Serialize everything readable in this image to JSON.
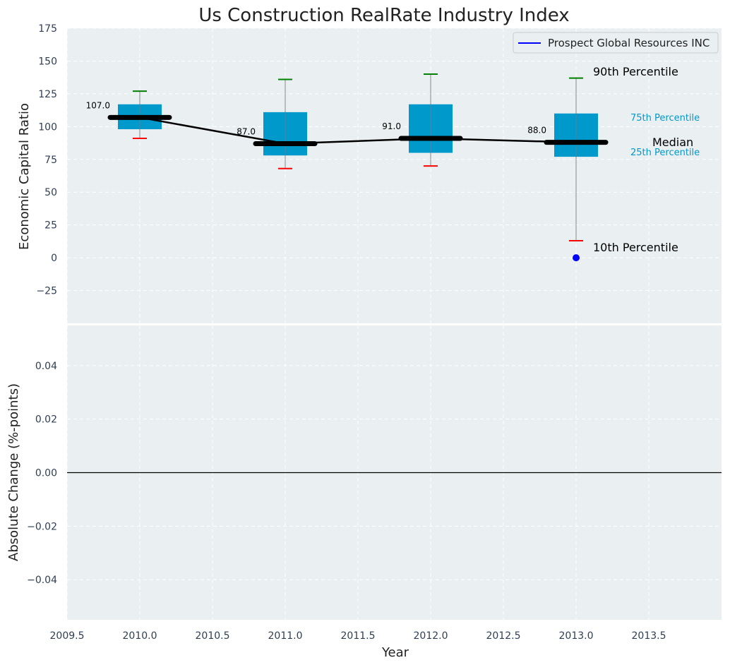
{
  "chart_data": [
    {
      "type": "box",
      "title": "Us Construction RealRate Industry Index",
      "xlabel": "",
      "ylabel": "Economic Capital Ratio",
      "ylim": [
        -50,
        175
      ],
      "xlim": [
        2009.5,
        2014.0
      ],
      "grid": true,
      "y_ticks": [
        "175",
        "150",
        "125",
        "100",
        "75",
        "50",
        "25",
        "0",
        "−25"
      ],
      "y_tick_values": [
        175,
        150,
        125,
        100,
        75,
        50,
        25,
        0,
        -25
      ],
      "legend": {
        "placement": "top-right",
        "entries": [
          {
            "label": "Prospect Global Resources INC",
            "color": "#0000ff"
          }
        ]
      },
      "boxes": [
        {
          "year": 2010,
          "p10": 91,
          "p25": 98,
          "median": 107,
          "p75": 117,
          "p90": 127,
          "median_label": "107.0"
        },
        {
          "year": 2011,
          "p10": 68,
          "p25": 78,
          "median": 87,
          "p75": 111,
          "p90": 136,
          "median_label": "87.0"
        },
        {
          "year": 2012,
          "p10": 70,
          "p25": 80,
          "median": 91,
          "p75": 117,
          "p90": 140,
          "median_label": "91.0"
        },
        {
          "year": 2013,
          "p10": 13,
          "p25": 77,
          "median": 88,
          "p75": 110,
          "p90": 137,
          "median_label": "88.0"
        }
      ],
      "company_series": {
        "name": "Prospect Global Resources INC",
        "x": [
          2013
        ],
        "y": [
          0
        ],
        "color": "#0000ff"
      },
      "annotations": {
        "p90": "90th Percentile",
        "p75": "75th Percentile",
        "median": "Median",
        "p25": "25th Percentile",
        "p10": "10th Percentile"
      },
      "colors": {
        "box": "#0099cc",
        "p90_whisker": "#008000",
        "p10_whisker": "#ff0000",
        "median": "#000000",
        "background": "#eaeff1"
      }
    },
    {
      "type": "line",
      "title": "",
      "xlabel": "Year",
      "ylabel": "Absolute Change (%-points)",
      "ylim": [
        -0.055,
        0.055
      ],
      "xlim": [
        2009.5,
        2014.0
      ],
      "grid": true,
      "x_ticks": [
        "2009.5",
        "2010.0",
        "2010.5",
        "2011.0",
        "2011.5",
        "2012.0",
        "2012.5",
        "2013.0",
        "2013.5"
      ],
      "x_tick_values": [
        2009.5,
        2010.0,
        2010.5,
        2011.0,
        2011.5,
        2012.0,
        2012.5,
        2013.0,
        2013.5
      ],
      "y_ticks": [
        "0.04",
        "0.02",
        "0.00",
        "−0.02",
        "−0.04"
      ],
      "y_tick_values": [
        0.04,
        0.02,
        0.0,
        -0.02,
        -0.04
      ],
      "reference_line": 0
    }
  ]
}
